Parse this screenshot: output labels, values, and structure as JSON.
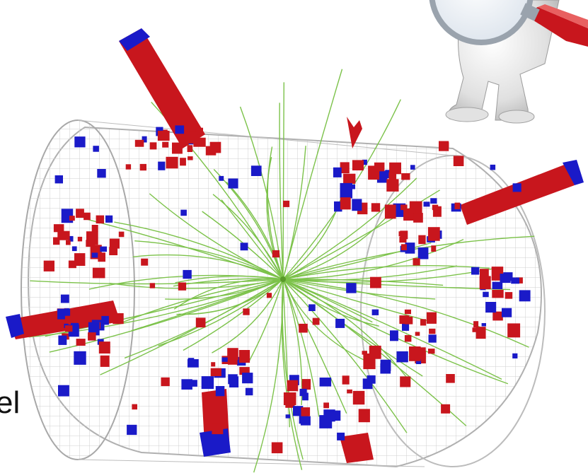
{
  "edge_text": "el",
  "icons": {
    "event_display": "particle-collision-event-display",
    "figure": "white-3d-figure-with-magnifying-glass-icon"
  },
  "colors": {
    "energy_high": "#c8161d",
    "energy_low": "#1a1ac8",
    "tracks": "#7cc24a",
    "mesh": "#c9c9c9",
    "figure_body": "#e7e7e7",
    "handle": "#c8161d"
  }
}
